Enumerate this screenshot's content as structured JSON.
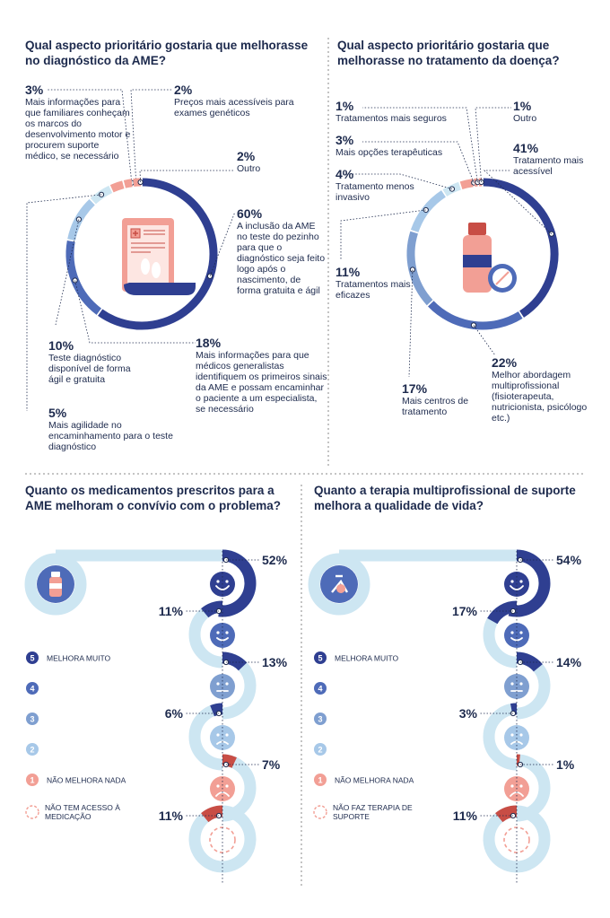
{
  "colors": {
    "dark_blue": "#2f3f91",
    "mid_blue": "#4e6bb8",
    "steel_blue": "#7f9fd0",
    "light_blue": "#a7c8e8",
    "pale_blue": "#cde6f2",
    "salmon": "#f29f95",
    "text": "#1d2a4d",
    "divider": "#8a8a8a"
  },
  "chart_data": [
    {
      "type": "pie",
      "title": "Qual aspecto prioritário gostaria que melhorasse no diagnóstico da AME?",
      "slices": [
        {
          "value": 60,
          "label": "60%",
          "text": "A inclusão da AME no teste do pezinho para que o diagnóstico seja feito logo após o nascimento, de forma gratuita e ágil"
        },
        {
          "value": 18,
          "label": "18%",
          "text": "Mais informações para que médicos generalistas identifiquem os primeiros sinais da AME e possam encaminhar o paciente a um especialista, se necessário"
        },
        {
          "value": 10,
          "label": "10%",
          "text": "Teste diagnóstico disponível de forma ágil e gratuita"
        },
        {
          "value": 5,
          "label": "5%",
          "text": "Mais agilidade no encaminhamento para o teste diagnóstico"
        },
        {
          "value": 3,
          "label": "3%",
          "text": "Mais informações para que familiares conheçam os marcos do desenvolvimento motor e procurem suporte médico, se necessário"
        },
        {
          "value": 2,
          "label": "2%",
          "text": "Preços mais acessíveis para exames genéticos"
        },
        {
          "value": 2,
          "label": "2%",
          "text": "Outro"
        }
      ],
      "icon": "heel-prick-test-document-icon"
    },
    {
      "type": "pie",
      "title": "Qual aspecto prioritário gostaria que melhorasse no tratamento da doença?",
      "slices": [
        {
          "value": 41,
          "label": "41%",
          "text": "Tratamento mais acessível"
        },
        {
          "value": 22,
          "label": "22%",
          "text": "Melhor abordagem multiprofissional (fisioterapeuta, nutricionista, psicólogo etc.)"
        },
        {
          "value": 17,
          "label": "17%",
          "text": "Mais centros de tratamento"
        },
        {
          "value": 11,
          "label": "11%",
          "text": "Tratamentos mais eficazes"
        },
        {
          "value": 4,
          "label": "4%",
          "text": "Tratamento menos invasivo"
        },
        {
          "value": 3,
          "label": "3%",
          "text": "Mais opções terapêuticas"
        },
        {
          "value": 1,
          "label": "1%",
          "text": "Tratamentos mais seguros"
        },
        {
          "value": 1,
          "label": "1%",
          "text": "Outro"
        }
      ],
      "icon": "medicine-bottle-icon"
    },
    {
      "type": "bar",
      "title": "Quanto os medicamentos prescritos para a AME melhoram o convívio com o problema?",
      "categories": [
        "5",
        "4",
        "3",
        "2",
        "1",
        "NÃO TEM ACESSO À MEDICAÇÃO"
      ],
      "values": [
        52,
        11,
        13,
        6,
        7,
        11
      ],
      "labels": [
        "52%",
        "11%",
        "13%",
        "6%",
        "7%",
        "11%"
      ],
      "icon": "medicine-bottle-icon"
    },
    {
      "type": "bar",
      "title": "Quanto a terapia multiprofissional de suporte melhora a qualidade de vida?",
      "categories": [
        "5",
        "4",
        "3",
        "2",
        "1",
        "NÃO FAZ TERAPIA DE SUPORTE"
      ],
      "values": [
        54,
        17,
        14,
        3,
        1,
        11
      ],
      "labels": [
        "54%",
        "17%",
        "14%",
        "3%",
        "1%",
        "11%"
      ],
      "icon": "exercise-bike-icon"
    }
  ],
  "legend": {
    "items": [
      {
        "num": "5",
        "text": "MELHORA MUITO"
      },
      {
        "num": "4",
        "text": ""
      },
      {
        "num": "3",
        "text": ""
      },
      {
        "num": "2",
        "text": ""
      },
      {
        "num": "1",
        "text": "NÃO MELHORA NADA"
      }
    ],
    "left_last": "NÃO TEM ACESSO À MEDICAÇÃO",
    "right_last": "NÃO FAZ TERAPIA DE SUPORTE"
  }
}
